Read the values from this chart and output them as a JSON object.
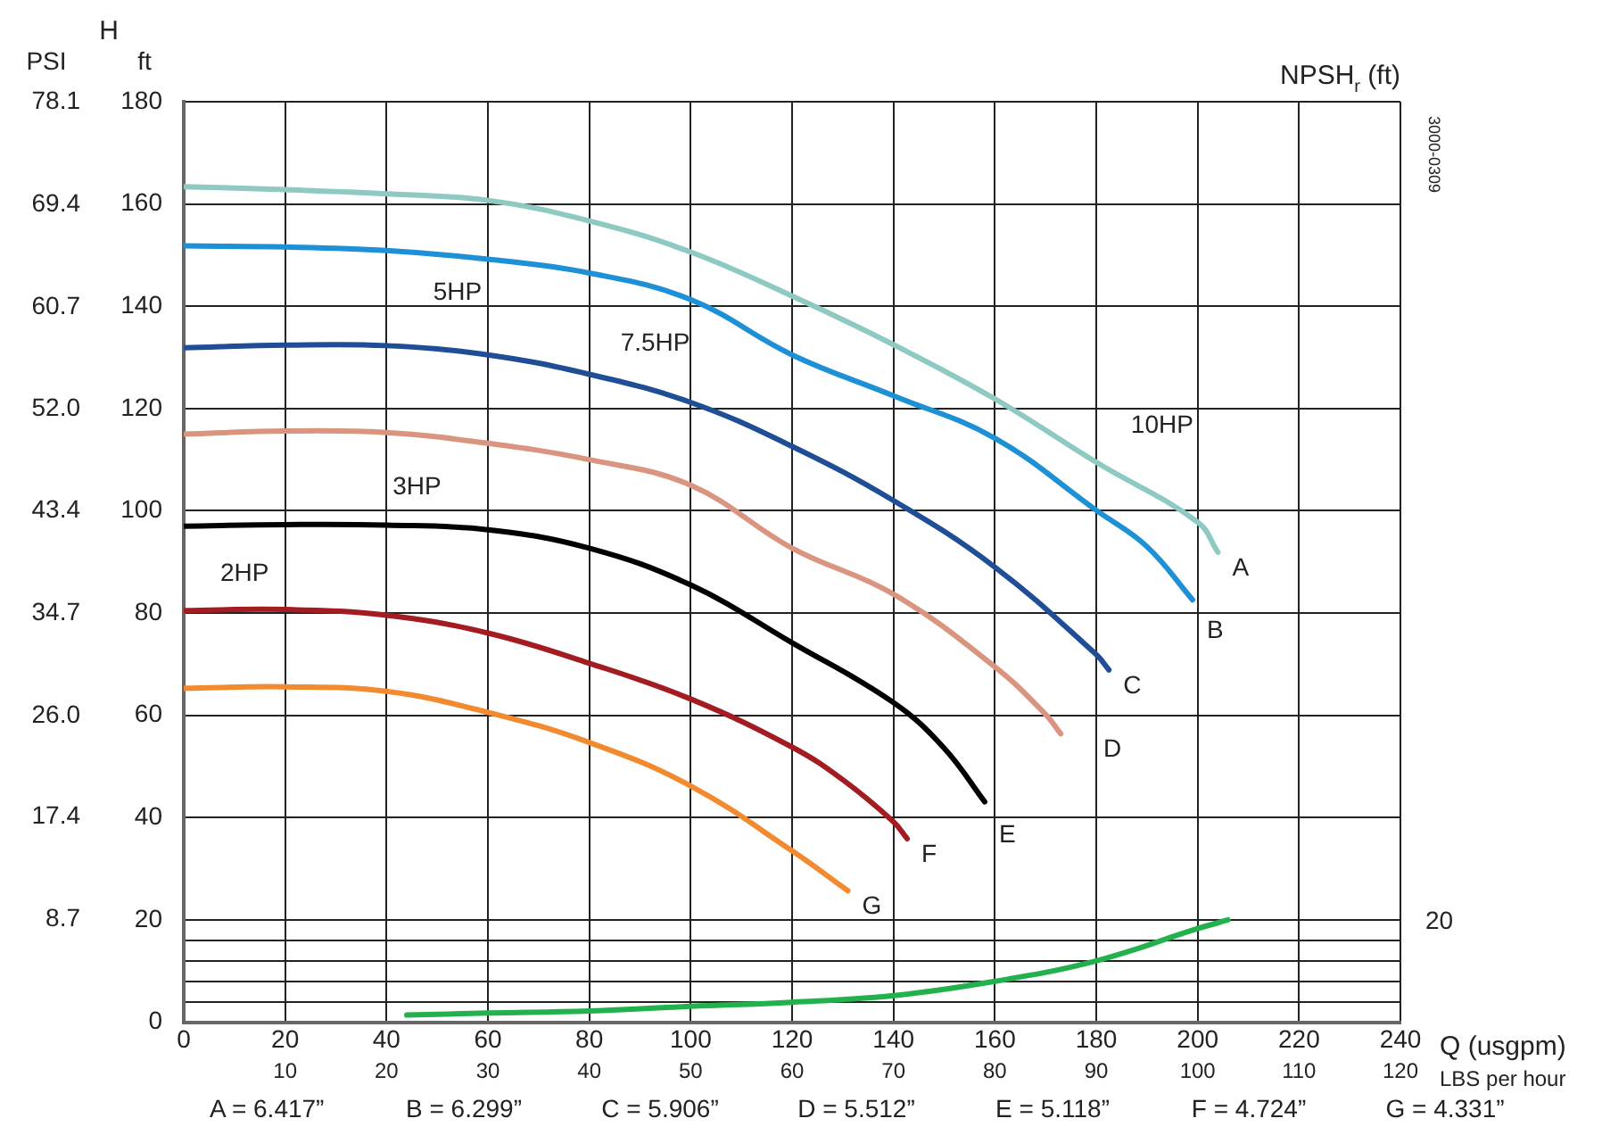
{
  "chart_data": {
    "type": "line",
    "xlabel": "Q (usgpm)",
    "ylabel": "ft",
    "y2label": "PSI",
    "x2label": "LBS per hour",
    "xlim": [
      0,
      240
    ],
    "xticks": [
      0,
      20,
      40,
      60,
      80,
      100,
      120,
      140,
      160,
      180,
      200,
      220,
      240
    ],
    "x2lim": [
      0,
      120
    ],
    "x2ticks": [
      10,
      20,
      30,
      40,
      50,
      60,
      70,
      80,
      90,
      100,
      110,
      120
    ],
    "ylim": [
      0,
      180
    ],
    "yticks": [
      0,
      {
        "value": 4,
        "label": null
      },
      {
        "value": 8,
        "label": null
      },
      {
        "value": 12,
        "label": null
      },
      {
        "value": 16,
        "label": null
      },
      20,
      40,
      60,
      80,
      100,
      120,
      140,
      160,
      180
    ],
    "y2lim": [
      0,
      78.1
    ],
    "y2ticks": [
      8.7,
      17.4,
      {
        "value": 26,
        "label": "26.0"
      },
      34.7,
      43.4,
      {
        "value": 52,
        "label": "52.0"
      },
      60.7,
      69.4,
      78.1
    ],
    "grid": true,
    "legend": false,
    "marker": "none",
    "line_style": "solid",
    "series": [
      {
        "name": "A",
        "color": "#8ecac2",
        "x": [
          0,
          20,
          40,
          60,
          80,
          100,
          120,
          140,
          160,
          180,
          200,
          204
        ],
        "values": [
          163.4,
          162.8,
          162,
          160.7,
          156.7,
          150.6,
          142,
          132.5,
          121.9,
          109.5,
          97.8,
          91.9
        ]
      },
      {
        "name": "B",
        "color": "#1e90d6",
        "x": [
          0,
          20,
          40,
          60,
          80,
          100,
          120,
          140,
          160,
          180,
          190,
          199
        ],
        "values": [
          151.8,
          151.6,
          150.9,
          149.2,
          146.5,
          141.3,
          130.5,
          122.5,
          114.2,
          100.1,
          93,
          82.6
        ]
      },
      {
        "name": "C",
        "color": "#1f4e96",
        "x": [
          0,
          20,
          40,
          60,
          80,
          100,
          120,
          140,
          160,
          180,
          182.5
        ],
        "values": [
          131.9,
          132.4,
          132.3,
          130.5,
          126.7,
          121.2,
          112.6,
          102,
          89,
          71.9,
          68.9
        ]
      },
      {
        "name": "D",
        "color": "#d99580",
        "x": [
          0,
          20,
          40,
          60,
          80,
          100,
          120,
          140,
          160,
          170,
          173
        ],
        "values": [
          115,
          115.6,
          115.3,
          113.2,
          110,
          105,
          92.7,
          83.7,
          69.5,
          60.2,
          56.4
        ]
      },
      {
        "name": "E",
        "color": "#000000",
        "x": [
          0,
          20,
          40,
          60,
          80,
          100,
          120,
          140,
          150,
          158
        ],
        "values": [
          97,
          97.3,
          97.2,
          96.3,
          92.7,
          85.5,
          74.2,
          62.5,
          53.6,
          43.1
        ]
      },
      {
        "name": "F",
        "color": "#a31c22",
        "x": [
          0,
          20,
          40,
          60,
          80,
          100,
          120,
          130,
          140,
          142.7
        ],
        "values": [
          80.5,
          80.7,
          79.6,
          76.1,
          70.2,
          63.2,
          53.8,
          47.4,
          39.2,
          35.9
        ]
      },
      {
        "name": "G",
        "color": "#f28a30",
        "x": [
          0,
          20,
          40,
          60,
          80,
          100,
          120,
          131
        ],
        "values": [
          65.3,
          65.6,
          64.7,
          60.6,
          54.7,
          46.2,
          33.5,
          25.7
        ]
      },
      {
        "color": "#22b14c",
        "x": [
          44,
          60,
          80,
          100,
          120,
          140,
          160,
          180,
          200,
          206
        ],
        "values": [
          1.4,
          1.8,
          2.2,
          3.1,
          3.9,
          5.2,
          8,
          12,
          18.3,
          20
        ]
      }
    ],
    "annotations": [
      "H",
      "3000-0309",
      "NPSH$_{r}$ (ft)",
      "20",
      "A = 6.417”",
      "B = 6.299”",
      "C = 5.906”",
      "D = 5.512”",
      "E = 5.118”",
      "F = 4.724”",
      "G = 4.331”",
      "2HP",
      "3HP",
      "5HP",
      "7.5HP",
      "10HP"
    ]
  }
}
